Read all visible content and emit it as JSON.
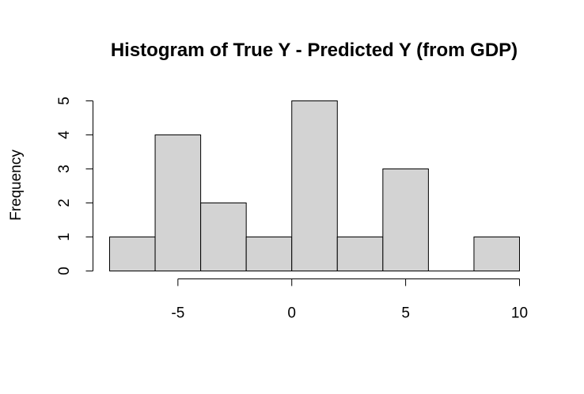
{
  "chart_data": {
    "type": "bar",
    "title": "Histogram of True Y - Predicted Y (from GDP)",
    "xlabel": "",
    "ylabel": "Frequency",
    "bins": [
      {
        "x0": -8,
        "x1": -6,
        "count": 1
      },
      {
        "x0": -6,
        "x1": -4,
        "count": 4
      },
      {
        "x0": -4,
        "x1": -2,
        "count": 2
      },
      {
        "x0": -2,
        "x1": 0,
        "count": 1
      },
      {
        "x0": 0,
        "x1": 2,
        "count": 5
      },
      {
        "x0": 2,
        "x1": 4,
        "count": 1
      },
      {
        "x0": 4,
        "x1": 6,
        "count": 3
      },
      {
        "x0": 6,
        "x1": 8,
        "count": 0
      },
      {
        "x0": 8,
        "x1": 10,
        "count": 1
      }
    ],
    "xticks": [
      -5,
      0,
      5,
      10
    ],
    "yticks": [
      0,
      1,
      2,
      3,
      4,
      5
    ],
    "xlim": [
      -8,
      10
    ],
    "ylim": [
      0,
      5
    ],
    "bar_fill": "#d3d3d3",
    "grid": false
  }
}
